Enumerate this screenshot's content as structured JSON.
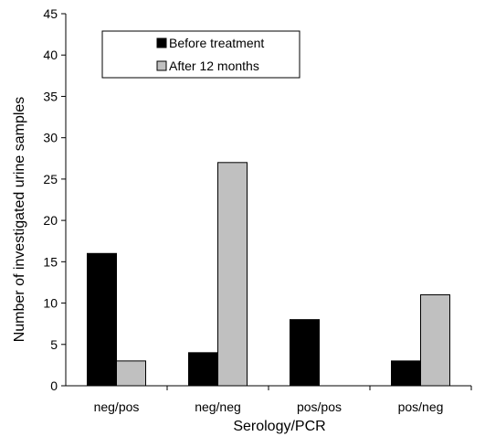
{
  "chart_data": {
    "type": "bar",
    "categories": [
      "neg/pos",
      "neg/neg",
      "pos/pos",
      "pos/neg"
    ],
    "series": [
      {
        "name": "Before treatment",
        "values": [
          16,
          4,
          8,
          3
        ],
        "color": "#000000"
      },
      {
        "name": "After 12 months",
        "values": [
          3,
          27,
          0,
          11
        ],
        "color": "#c0c0c0"
      }
    ],
    "xlabel": "Serology/PCR",
    "ylabel": "Number of investigated urine samples",
    "ylim": [
      0,
      45
    ],
    "yticks": [
      0,
      5,
      10,
      15,
      20,
      25,
      30,
      35,
      40,
      45
    ],
    "grid": false,
    "legend_position": "top-left"
  }
}
